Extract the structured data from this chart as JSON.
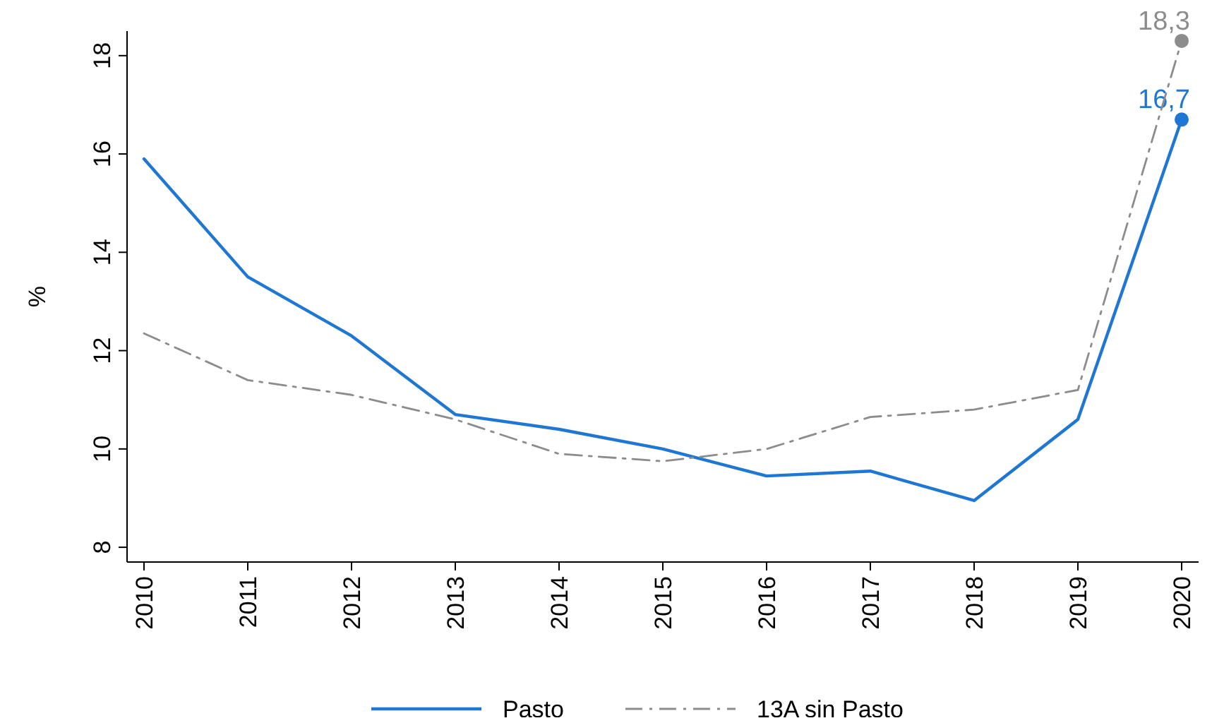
{
  "chart_data": {
    "type": "line",
    "ylabel": "%",
    "categories": [
      "2010",
      "2011",
      "2012",
      "2013",
      "2014",
      "2015",
      "2016",
      "2017",
      "2018",
      "2019",
      "2020"
    ],
    "series": [
      {
        "name": "Pasto",
        "color": "#1f77d4",
        "line_style": "solid",
        "values": [
          15.9,
          13.5,
          12.3,
          10.7,
          10.4,
          10.0,
          9.45,
          9.55,
          8.95,
          10.6,
          16.7
        ],
        "value_labels": [
          null,
          null,
          null,
          null,
          null,
          null,
          null,
          null,
          null,
          null,
          "16,7"
        ]
      },
      {
        "name": "13A sin Pasto",
        "color": "#8c8c8c",
        "line_style": "dashed",
        "values": [
          12.35,
          11.4,
          11.1,
          10.6,
          9.9,
          9.75,
          10.0,
          10.65,
          10.8,
          11.2,
          18.3
        ],
        "value_labels": [
          null,
          null,
          null,
          null,
          null,
          null,
          null,
          null,
          null,
          null,
          "18,3"
        ]
      }
    ],
    "ylim": [
      7.7,
      18.5
    ],
    "yticks": [
      8,
      10,
      12,
      14,
      16,
      18
    ],
    "grid": false,
    "legend": "bottom"
  }
}
